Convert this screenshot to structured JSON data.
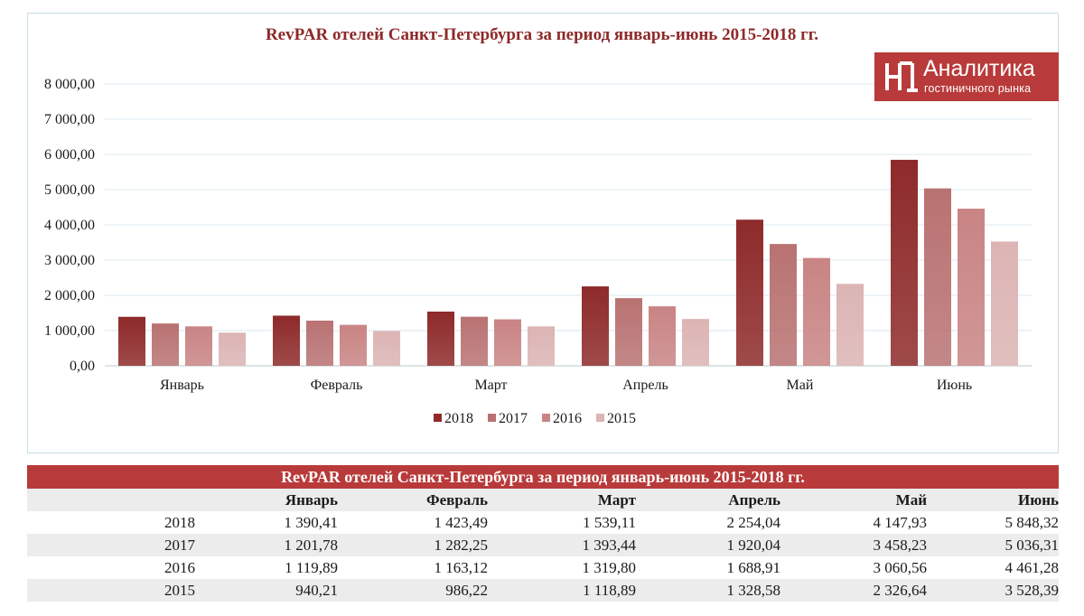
{
  "chart": {
    "title": "RevPAR отелей Санкт-Петербурга за период январь-июнь 2015-2018 гг."
  },
  "logo": {
    "title": "Аналитика",
    "subtitle": "гостиничного рынка"
  },
  "chart_data": {
    "type": "bar",
    "categories": [
      "Январь",
      "Февраль",
      "Март",
      "Апрель",
      "Май",
      "Июнь"
    ],
    "series": [
      {
        "name": "2018",
        "values": [
          1390.41,
          1423.49,
          1539.11,
          2254.04,
          4147.93,
          5848.32
        ],
        "color": "#8e2a2a"
      },
      {
        "name": "2017",
        "values": [
          1201.78,
          1282.25,
          1393.44,
          1920.04,
          3458.23,
          5036.31
        ],
        "color": "#b97272"
      },
      {
        "name": "2016",
        "values": [
          1119.89,
          1163.12,
          1319.8,
          1688.91,
          3060.56,
          4461.28
        ],
        "color": "#c98484"
      },
      {
        "name": "2015",
        "values": [
          940.21,
          986.22,
          1118.89,
          1328.58,
          2326.64,
          3528.39
        ],
        "color": "#dcb4b4"
      }
    ],
    "ylim": [
      0,
      8000
    ],
    "yticks": [
      "0,00",
      "1 000,00",
      "2 000,00",
      "3 000,00",
      "4 000,00",
      "5 000,00",
      "6 000,00",
      "7 000,00",
      "8 000,00"
    ],
    "grid": true,
    "legend": "bottom"
  },
  "table": {
    "title": "RevPAR отелей Санкт-Петербурга за период январь-июнь 2015-2018 гг.",
    "headers": [
      "Январь",
      "Февраль",
      "Март",
      "Апрель",
      "Май",
      "Июнь"
    ],
    "rows": [
      {
        "year": "2018",
        "values": [
          "1 390,41",
          "1 423,49",
          "1 539,11",
          "2 254,04",
          "4 147,93",
          "5 848,32"
        ]
      },
      {
        "year": "2017",
        "values": [
          "1 201,78",
          "1 282,25",
          "1 393,44",
          "1 920,04",
          "3 458,23",
          "5 036,31"
        ]
      },
      {
        "year": "2016",
        "values": [
          "1 119,89",
          "1 163,12",
          "1 319,80",
          "1 688,91",
          "3 060,56",
          "4 461,28"
        ]
      },
      {
        "year": "2015",
        "values": [
          "940,21",
          "986,22",
          "1 118,89",
          "1 328,58",
          "2 326,64",
          "3 528,39"
        ]
      }
    ]
  }
}
